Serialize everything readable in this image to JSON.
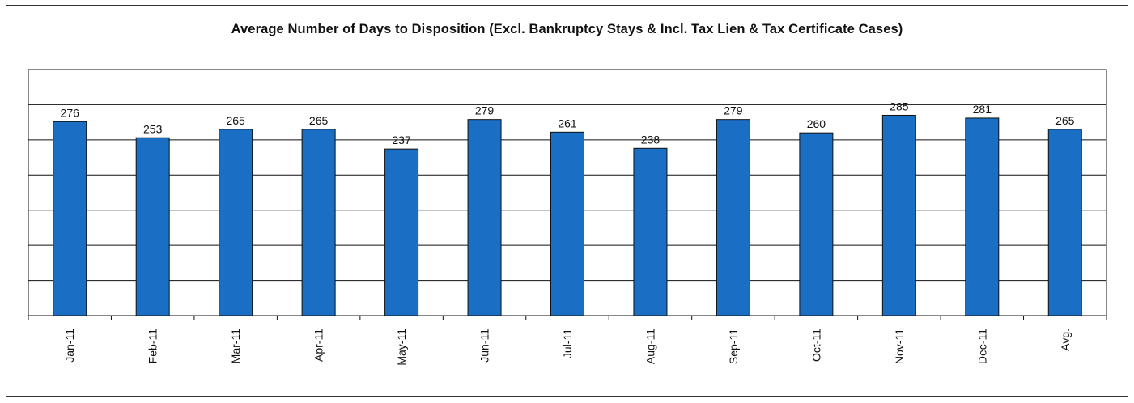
{
  "chart_data": {
    "type": "bar",
    "title": "Average Number of Days to Disposition  (Excl. Bankruptcy Stays & Incl. Tax Lien & Tax Certificate Cases)",
    "categories": [
      "Jan-11",
      "Feb-11",
      "Mar-11",
      "Apr-11",
      "May-11",
      "Jun-11",
      "Jul-11",
      "Aug-11",
      "Sep-11",
      "Oct-11",
      "Nov-11",
      "Dec-11",
      "Avg."
    ],
    "values": [
      276,
      253,
      265,
      265,
      237,
      279,
      261,
      238,
      279,
      260,
      285,
      281,
      265
    ],
    "data_labels": [
      "276",
      "253",
      "265",
      "265",
      "237",
      "279",
      "261",
      "238",
      "279",
      "260",
      "285",
      "281",
      "265"
    ],
    "xlabel": "",
    "ylabel": "",
    "ylim": [
      0,
      350
    ],
    "grid": true,
    "legend": "none",
    "bar_color": "#1a6fc4"
  }
}
